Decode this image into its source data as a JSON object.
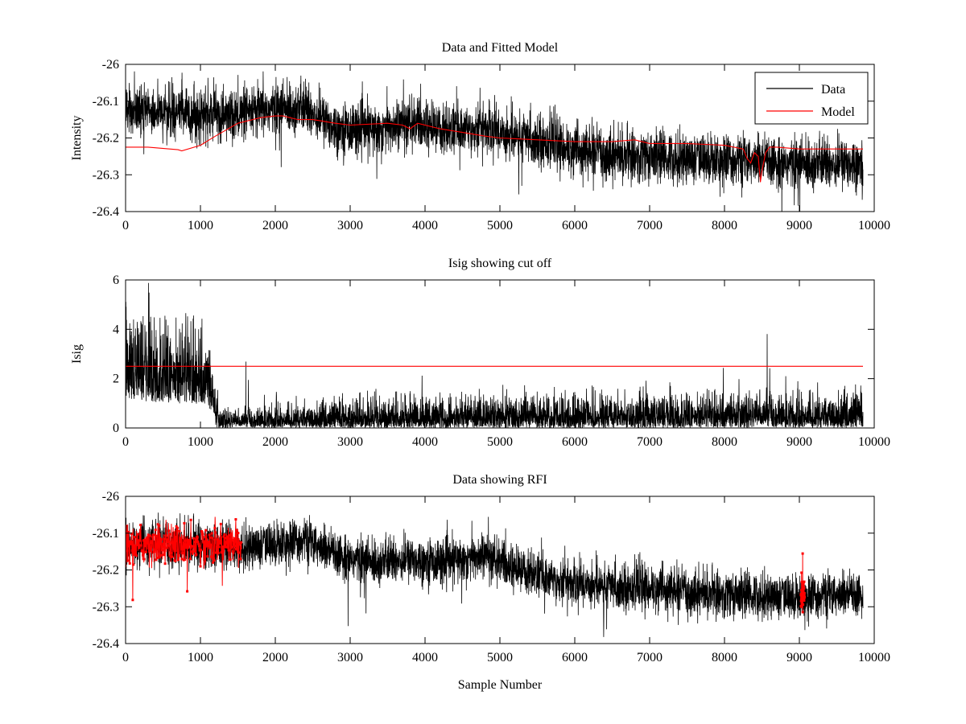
{
  "figure": {
    "background": "#ffffff"
  },
  "chart_data": [
    {
      "id": "top",
      "type": "line",
      "title": "Data and Fitted Model",
      "xlabel": "",
      "ylabel": "Intensity",
      "xlim": [
        0,
        10000
      ],
      "ylim": [
        -26.4,
        -26.0
      ],
      "xticks": [
        0,
        1000,
        2000,
        3000,
        4000,
        5000,
        6000,
        7000,
        8000,
        9000,
        10000
      ],
      "yticks": [
        -26.0,
        -26.1,
        -26.2,
        -26.3,
        -26.4
      ],
      "ytick_labels": [
        "-26",
        "-26.1",
        "-26.2",
        "-26.3",
        "-26.4"
      ],
      "grid": false,
      "legend": {
        "placement": "top-right",
        "entries": [
          "Data",
          "Model"
        ]
      },
      "series": [
        {
          "name": "Data",
          "color": "#000000",
          "style": "noisy",
          "x_max": 9850,
          "trend_x": [
            0,
            500,
            1000,
            1500,
            2000,
            2400,
            2800,
            3300,
            3800,
            4300,
            4800,
            5100,
            5600,
            6000,
            6500,
            7000,
            7500,
            8000,
            8500,
            9000,
            9400,
            9850
          ],
          "trend_y": [
            -26.125,
            -26.13,
            -26.135,
            -26.14,
            -26.12,
            -26.12,
            -26.17,
            -26.18,
            -26.16,
            -26.18,
            -26.17,
            -26.19,
            -26.21,
            -26.235,
            -26.245,
            -26.25,
            -26.255,
            -26.26,
            -26.265,
            -26.27,
            -26.27,
            -26.265
          ],
          "amplitude": 0.09
        },
        {
          "name": "Model",
          "color": "#ff0000",
          "style": "smooth",
          "x": [
            0,
            300,
            700,
            750,
            1000,
            1200,
            1500,
            1800,
            2000,
            2100,
            2300,
            2500,
            2800,
            3000,
            3500,
            3700,
            3800,
            3900,
            4200,
            4500,
            4800,
            5000,
            5500,
            6000,
            6500,
            6800,
            7000,
            7500,
            8000,
            8250,
            8300,
            8350,
            8400,
            8450,
            8480,
            8500,
            8550,
            8600,
            8700,
            9000,
            9400,
            9850
          ],
          "y": [
            -26.225,
            -26.225,
            -26.232,
            -26.235,
            -26.22,
            -26.195,
            -26.16,
            -26.145,
            -26.14,
            -26.14,
            -26.15,
            -26.15,
            -26.16,
            -26.165,
            -26.16,
            -26.165,
            -26.175,
            -26.16,
            -26.175,
            -26.185,
            -26.195,
            -26.2,
            -26.205,
            -26.21,
            -26.21,
            -26.205,
            -26.215,
            -26.215,
            -26.22,
            -26.23,
            -26.255,
            -26.268,
            -26.24,
            -26.25,
            -26.32,
            -26.29,
            -26.24,
            -26.225,
            -26.225,
            -26.23,
            -26.23,
            -26.23
          ]
        }
      ]
    },
    {
      "id": "middle",
      "type": "line",
      "title": "Isig showing cut off",
      "xlabel": "",
      "ylabel": "Isig",
      "xlim": [
        0,
        10000
      ],
      "ylim": [
        0,
        6
      ],
      "xticks": [
        0,
        1000,
        2000,
        3000,
        4000,
        5000,
        6000,
        7000,
        8000,
        9000,
        10000
      ],
      "yticks": [
        0,
        2,
        4,
        6
      ],
      "grid": false,
      "series": [
        {
          "color": "#000000",
          "style": "spiky",
          "x_max": 9850,
          "level_x": [
            0,
            200,
            600,
            1000,
            1100,
            1250,
            1500,
            2000,
            3000,
            4000,
            5000,
            6000,
            7000,
            8000,
            9000,
            9850
          ],
          "level_y": [
            2.1,
            2.0,
            1.8,
            1.7,
            1.5,
            0.45,
            0.4,
            0.55,
            0.6,
            0.65,
            0.7,
            0.7,
            0.75,
            0.75,
            0.8,
            0.8
          ]
        },
        {
          "color": "#ff0000",
          "style": "constant",
          "x": [
            0,
            9850
          ],
          "y": [
            2.5,
            2.5
          ]
        }
      ]
    },
    {
      "id": "bottom",
      "type": "line",
      "title": "Data showing RFI",
      "xlabel": "Sample Number",
      "ylabel": "",
      "xlim": [
        0,
        10000
      ],
      "ylim": [
        -26.4,
        -26.0
      ],
      "xticks": [
        0,
        1000,
        2000,
        3000,
        4000,
        5000,
        6000,
        7000,
        8000,
        9000,
        10000
      ],
      "yticks": [
        -26.0,
        -26.1,
        -26.2,
        -26.3,
        -26.4
      ],
      "ytick_labels": [
        "-26",
        "-26.1",
        "-26.2",
        "-26.3",
        "-26.4"
      ],
      "grid": false,
      "series": [
        {
          "color": "#000000",
          "style": "noisy",
          "x_max": 9850,
          "trend_x": [
            0,
            500,
            1000,
            1500,
            2000,
            2400,
            2800,
            3300,
            3800,
            4300,
            4800,
            5100,
            5600,
            6000,
            6500,
            7000,
            7500,
            8000,
            8500,
            9000,
            9400,
            9850
          ],
          "trend_y": [
            -26.13,
            -26.13,
            -26.13,
            -26.14,
            -26.13,
            -26.12,
            -26.16,
            -26.18,
            -26.17,
            -26.18,
            -26.16,
            -26.19,
            -26.22,
            -26.235,
            -26.245,
            -26.25,
            -26.26,
            -26.265,
            -26.27,
            -26.275,
            -26.27,
            -26.27
          ],
          "amplitude": 0.08
        },
        {
          "color": "#ff0000",
          "style": "flagged",
          "ranges": [
            [
              0,
              1550
            ],
            [
              9020,
              9070
            ]
          ],
          "range_centers": [
            -26.13,
            -26.27
          ],
          "amplitude": 0.075
        }
      ]
    }
  ]
}
